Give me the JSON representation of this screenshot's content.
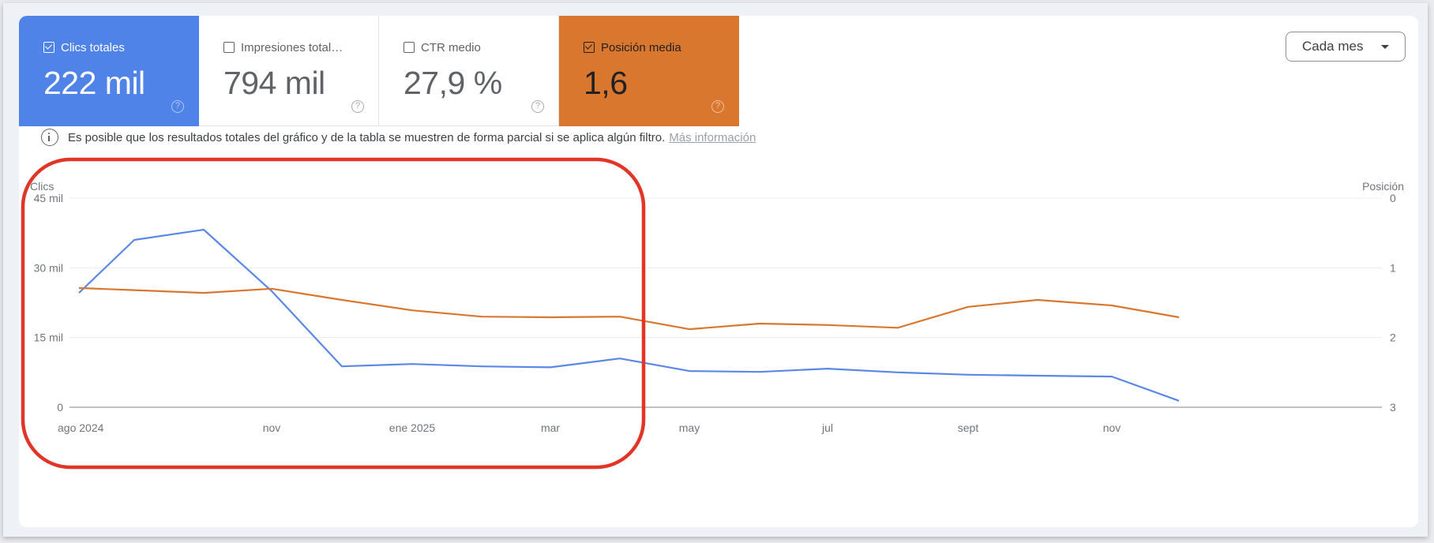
{
  "tiles": [
    {
      "label": "Clics totales",
      "value": "222 mil",
      "checked": true,
      "color": "#5083e8"
    },
    {
      "label": "Impresiones total…",
      "value": "794 mil",
      "checked": false
    },
    {
      "label": "CTR medio",
      "value": "27,9 %",
      "checked": false
    },
    {
      "label": "Posición media",
      "value": "1,6",
      "checked": true,
      "color": "#d9772f"
    }
  ],
  "help_icon": "question-circle-icon",
  "granularity": {
    "label": "Cada mes",
    "icon": "caret-down-icon"
  },
  "notice": {
    "icon": "info-circle-icon",
    "text": "Es posible que los resultados totales del gráfico y de la tabla se muestren de forma parcial si se aplica algún filtro.",
    "link": "Más información"
  },
  "chart_data": {
    "type": "line",
    "title": "",
    "categories": [
      "ago 2024",
      "sept 2024",
      "oct 2024",
      "nov 2024",
      "dic 2024",
      "ene 2025",
      "feb 2025",
      "mar 2025",
      "abr 2025",
      "may 2025",
      "jun 2025",
      "jul 2025",
      "ago 2025",
      "sept 2025",
      "oct 2025",
      "nov 2025",
      "dic 2025"
    ],
    "x_tick_labels": [
      "ago 2024",
      "nov",
      "ene 2025",
      "mar",
      "may",
      "jul",
      "sept",
      "nov"
    ],
    "series": [
      {
        "name": "Clics",
        "axis": "left",
        "color": "#5b87e6",
        "unit": "mil",
        "values": [
          24.6,
          36.0,
          38.2,
          25.0,
          8.8,
          9.3,
          8.8,
          8.6,
          10.5,
          7.8,
          7.6,
          8.3,
          7.5,
          7.0,
          6.8,
          6.6,
          1.4
        ]
      },
      {
        "name": "Posición",
        "axis": "right",
        "color": "#d9772f",
        "values": [
          1.29,
          1.32,
          1.36,
          1.3,
          1.46,
          1.61,
          1.7,
          1.71,
          1.7,
          1.88,
          1.8,
          1.82,
          1.86,
          1.56,
          1.46,
          1.54,
          1.71
        ]
      }
    ],
    "ylabel_left": "Clics",
    "ylabel_right": "Posición",
    "y_left_ticks": [
      "45 mil",
      "30 mil",
      "15 mil",
      "0"
    ],
    "y_right_ticks": [
      "0",
      "1",
      "2",
      "3"
    ],
    "ylim_left": [
      0,
      45
    ],
    "ylim_right": [
      0,
      3
    ],
    "y_right_inverted": true,
    "grid": true,
    "annotation": "Red rounded rectangle highlighting ago 2024 – abr 2025"
  }
}
